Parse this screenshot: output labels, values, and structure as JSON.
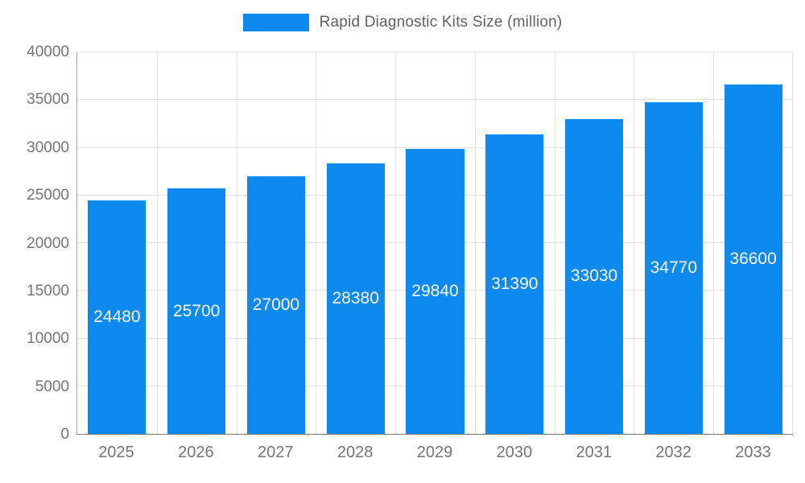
{
  "chart_data": {
    "type": "bar",
    "title": "Rapid Diagnostic Kits Size (million)",
    "categories": [
      "2025",
      "2026",
      "2027",
      "2028",
      "2029",
      "2030",
      "2031",
      "2032",
      "2033"
    ],
    "values": [
      24480,
      25700,
      27000,
      28380,
      29840,
      31390,
      33030,
      34770,
      36600
    ],
    "xlabel": "",
    "ylabel": "",
    "ylim": [
      0,
      40000
    ],
    "yticks": [
      0,
      5000,
      10000,
      15000,
      20000,
      25000,
      30000,
      35000,
      40000
    ],
    "grid": true,
    "legend_position": "top-center",
    "bar_color": "#0d8af0",
    "bar_label_color": "#ffffff",
    "axis_text_color": "#757575",
    "gridline_color": "#e0e0e0"
  },
  "legend": {
    "label": "Rapid Diagnostic Kits Size (million)"
  }
}
